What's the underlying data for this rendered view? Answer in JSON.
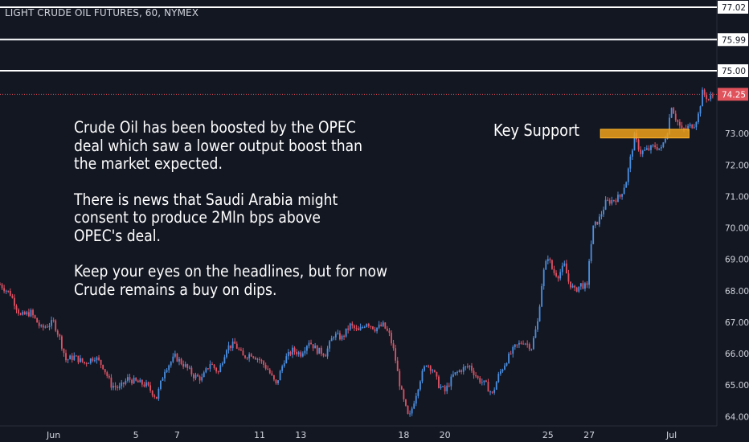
{
  "chart_data": {
    "type": "candlestick",
    "title": "LIGHT CRUDE OIL FUTURES, 60, NYMEX",
    "price_axis": {
      "ylim": [
        63.7,
        77.25
      ],
      "ticks": [
        "64.00",
        "65.00",
        "66.00",
        "67.00",
        "68.00",
        "69.00",
        "70.00",
        "71.00",
        "72.00",
        "73.00"
      ]
    },
    "time_axis": {
      "labels": [
        {
          "label": "Jun",
          "x": 1
        },
        {
          "label": "5",
          "x": 5
        },
        {
          "label": "7",
          "x": 7
        },
        {
          "label": "11",
          "x": 11
        },
        {
          "label": "13",
          "x": 13
        },
        {
          "label": "18",
          "x": 18
        },
        {
          "label": "20",
          "x": 20
        },
        {
          "label": "25",
          "x": 25
        },
        {
          "label": "27",
          "x": 27
        },
        {
          "label": "Jul",
          "x": 31
        }
      ],
      "xlim": [
        -1.6,
        33.2
      ]
    },
    "horizontal_levels": [
      {
        "value": 77.02,
        "label": "77.02"
      },
      {
        "value": 75.99,
        "label": "75.99"
      },
      {
        "value": 75.0,
        "label": "75.00"
      }
    ],
    "last_price": {
      "value": 74.25,
      "label": "74.25"
    },
    "support_zone": {
      "from": 72.9,
      "to": 73.1,
      "x_start": 27.55,
      "x_end": 31.85
    },
    "price_path": [
      [
        -1.6,
        68.2
      ],
      [
        -1.1,
        67.9
      ],
      [
        -0.6,
        67.2
      ],
      [
        -0.1,
        67.3
      ],
      [
        0.4,
        66.8
      ],
      [
        1.0,
        67.0
      ],
      [
        1.3,
        66.5
      ],
      [
        1.6,
        65.8
      ],
      [
        2.0,
        65.9
      ],
      [
        2.5,
        65.7
      ],
      [
        3.0,
        65.9
      ],
      [
        3.4,
        65.6
      ],
      [
        3.8,
        65.0
      ],
      [
        4.2,
        64.9
      ],
      [
        4.6,
        65.2
      ],
      [
        5.0,
        65.1
      ],
      [
        5.5,
        65.0
      ],
      [
        6.0,
        64.6
      ],
      [
        6.4,
        65.5
      ],
      [
        6.9,
        65.9
      ],
      [
        7.4,
        65.6
      ],
      [
        7.8,
        65.3
      ],
      [
        8.2,
        65.2
      ],
      [
        8.6,
        65.7
      ],
      [
        9.0,
        65.4
      ],
      [
        9.4,
        66.2
      ],
      [
        9.8,
        66.3
      ],
      [
        10.2,
        65.9
      ],
      [
        10.6,
        66.0
      ],
      [
        11.0,
        65.8
      ],
      [
        11.4,
        65.5
      ],
      [
        11.8,
        65.0
      ],
      [
        12.2,
        65.8
      ],
      [
        12.6,
        66.1
      ],
      [
        13.0,
        66.0
      ],
      [
        13.4,
        66.4
      ],
      [
        13.8,
        66.1
      ],
      [
        14.2,
        66.0
      ],
      [
        14.6,
        66.6
      ],
      [
        15.0,
        66.5
      ],
      [
        15.4,
        66.9
      ],
      [
        15.8,
        66.7
      ],
      [
        16.2,
        67.0
      ],
      [
        16.6,
        66.8
      ],
      [
        17.0,
        66.9
      ],
      [
        17.3,
        66.6
      ],
      [
        17.55,
        66.0
      ],
      [
        17.75,
        65.2
      ],
      [
        17.95,
        64.6
      ],
      [
        18.25,
        63.9
      ],
      [
        18.5,
        64.5
      ],
      [
        18.8,
        65.2
      ],
      [
        19.1,
        65.7
      ],
      [
        19.4,
        65.5
      ],
      [
        19.7,
        65.0
      ],
      [
        20.0,
        64.8
      ],
      [
        20.4,
        65.3
      ],
      [
        20.8,
        65.5
      ],
      [
        21.2,
        65.6
      ],
      [
        21.6,
        65.2
      ],
      [
        22.0,
        65.0
      ],
      [
        22.3,
        64.7
      ],
      [
        22.6,
        65.3
      ],
      [
        23.0,
        65.8
      ],
      [
        23.4,
        66.2
      ],
      [
        23.8,
        66.4
      ],
      [
        24.2,
        66.2
      ],
      [
        24.5,
        67.0
      ],
      [
        24.75,
        68.5
      ],
      [
        25.0,
        69.1
      ],
      [
        25.25,
        68.6
      ],
      [
        25.5,
        68.5
      ],
      [
        25.8,
        68.8
      ],
      [
        26.0,
        68.3
      ],
      [
        26.3,
        68.0
      ],
      [
        26.6,
        68.2
      ],
      [
        26.9,
        68.1
      ],
      [
        27.0,
        69.0
      ],
      [
        27.2,
        70.0
      ],
      [
        27.5,
        70.3
      ],
      [
        27.8,
        70.8
      ],
      [
        28.2,
        70.9
      ],
      [
        28.5,
        71.0
      ],
      [
        28.8,
        71.5
      ],
      [
        29.0,
        72.2
      ],
      [
        29.2,
        72.9
      ],
      [
        29.5,
        72.4
      ],
      [
        29.9,
        72.5
      ],
      [
        30.2,
        72.6
      ],
      [
        30.5,
        72.5
      ],
      [
        30.8,
        73.1
      ],
      [
        31.0,
        73.9
      ],
      [
        31.2,
        73.5
      ],
      [
        31.5,
        73.1
      ],
      [
        31.8,
        73.2
      ],
      [
        32.1,
        73.3
      ],
      [
        32.3,
        73.6
      ],
      [
        32.5,
        74.3
      ],
      [
        32.8,
        74.1
      ],
      [
        33.05,
        74.25
      ]
    ]
  },
  "annotation": {
    "lines": [
      "Crude Oil has been boosted by the OPEC",
      "deal which saw a lower output boost than",
      "the market expected.",
      "",
      "There is news that Saudi Arabia might",
      "consent to produce 2Mln bps above",
      "OPEC's deal.",
      "",
      "Keep your eyes on the headlines, but for now",
      "Crude remains a buy on dips."
    ],
    "support_label": "Key Support"
  },
  "colors": {
    "background": "#131722",
    "up": "#4c8fe0",
    "down": "#e05263",
    "level_line": "#ffffff",
    "last_price": "#e0525c",
    "support_fill": "#f0a21a",
    "axis_text": "#d1d4dc"
  }
}
